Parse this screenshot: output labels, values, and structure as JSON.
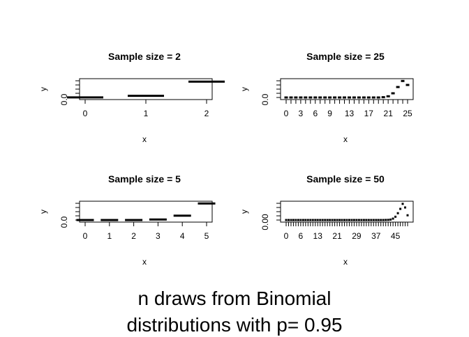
{
  "figure_title": {
    "line1": "n draws from Binomial",
    "line2": "distributions with p=  0.95"
  },
  "chart_data": [
    {
      "type": "bar",
      "title": "Sample size =  2",
      "xlabel": "x",
      "ylabel": "y",
      "y_tick_labels": [
        "0.0"
      ],
      "x_tick_labels": [
        "0",
        "1",
        "2"
      ],
      "x": [
        0,
        1,
        2
      ],
      "values": [
        0.0025,
        0.095,
        0.9025
      ],
      "ylim": [
        0,
        0.95
      ],
      "grid": false
    },
    {
      "type": "bar",
      "title": "Sample size =  25",
      "xlabel": "x",
      "ylabel": "y",
      "y_tick_labels": [
        "0.0"
      ],
      "x_tick_labels": [
        "0",
        "3",
        "6",
        "9",
        "13",
        "17",
        "21",
        "25"
      ],
      "x": [
        0,
        1,
        2,
        3,
        4,
        5,
        6,
        7,
        8,
        9,
        10,
        11,
        12,
        13,
        14,
        15,
        16,
        17,
        18,
        19,
        20,
        21,
        22,
        23,
        24,
        25
      ],
      "values": [
        0,
        0,
        0,
        0,
        0,
        0,
        0,
        0,
        0,
        0,
        0,
        0,
        0,
        0,
        0,
        0,
        0,
        0,
        0,
        0,
        0.006,
        0.0259,
        0.093,
        0.2305,
        0.365,
        0.2774
      ],
      "ylim": [
        0,
        0.37
      ],
      "grid": false
    },
    {
      "type": "bar",
      "title": "Sample size =  5",
      "xlabel": "x",
      "ylabel": "y",
      "y_tick_labels": [
        "0.0"
      ],
      "x_tick_labels": [
        "0",
        "1",
        "2",
        "3",
        "4",
        "5"
      ],
      "x": [
        0,
        1,
        2,
        3,
        4,
        5
      ],
      "values": [
        0,
        0,
        0.0011,
        0.0214,
        0.2036,
        0.7738
      ],
      "ylim": [
        0,
        0.78
      ],
      "grid": false
    },
    {
      "type": "bar",
      "title": "Sample size =  50",
      "xlabel": "x",
      "ylabel": "y",
      "y_tick_labels": [
        "0.00"
      ],
      "x_tick_labels": [
        "0",
        "6",
        "13",
        "21",
        "29",
        "37",
        "45"
      ],
      "x": [
        0,
        1,
        2,
        3,
        4,
        5,
        6,
        7,
        8,
        9,
        10,
        11,
        12,
        13,
        14,
        15,
        16,
        17,
        18,
        19,
        20,
        21,
        22,
        23,
        24,
        25,
        26,
        27,
        28,
        29,
        30,
        31,
        32,
        33,
        34,
        35,
        36,
        37,
        38,
        39,
        40,
        41,
        42,
        43,
        44,
        45,
        46,
        47,
        48,
        49,
        50
      ],
      "values": [
        0,
        0,
        0,
        0,
        0,
        0,
        0,
        0,
        0,
        0,
        0,
        0,
        0,
        0,
        0,
        0,
        0,
        0,
        0,
        0,
        0,
        0,
        0,
        0,
        0,
        0,
        0,
        0,
        0,
        0,
        0,
        0,
        0,
        0,
        0,
        0,
        0,
        0,
        0,
        0,
        0,
        0.0006,
        0.0022,
        0.0072,
        0.022,
        0.0533,
        0.1101,
        0.18,
        0.2611,
        0.2025,
        0.0769
      ],
      "ylim": [
        0,
        0.27
      ],
      "grid": false
    }
  ]
}
